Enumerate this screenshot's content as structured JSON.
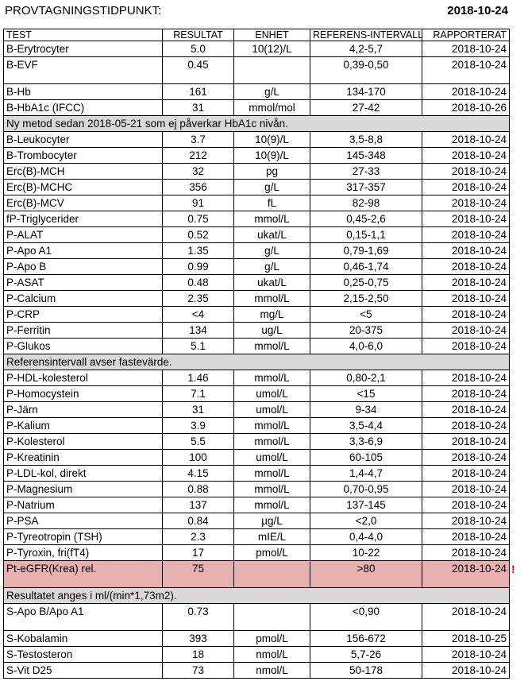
{
  "header": {
    "label": "PROVTAGNINGSTIDPUNKT:",
    "date": "2018-10-24"
  },
  "columns": {
    "test": "TEST",
    "result": "RESULTAT",
    "unit": "ENHET",
    "ref": "REFERENS-INTERVALL",
    "reported": "RAPPORTERAT"
  },
  "rows": [
    {
      "type": "data",
      "test": "B-Erytrocyter",
      "result": "5.0",
      "unit": "10(12)/L",
      "ref": "4,2-5,7",
      "date": "2018-10-24"
    },
    {
      "type": "data",
      "tall": true,
      "test": "B-EVF",
      "result": "0.45",
      "unit": "",
      "ref": "0,39-0,50",
      "date": "2018-10-24"
    },
    {
      "type": "data",
      "test": "B-Hb",
      "result": "161",
      "unit": "g/L",
      "ref": "134-170",
      "date": "2018-10-24"
    },
    {
      "type": "data",
      "test": "B-HbA1c (IFCC)",
      "result": "31",
      "unit": "mmol/mol",
      "ref": "27-42",
      "date": "2018-10-26"
    },
    {
      "type": "note",
      "text": "Ny metod sedan 2018-05-21 som ej påverkar HbA1c nivån."
    },
    {
      "type": "data",
      "test": "B-Leukocyter",
      "result": "3.7",
      "unit": "10(9)/L",
      "ref": "3,5-8,8",
      "date": "2018-10-24"
    },
    {
      "type": "data",
      "test": "B-Trombocyter",
      "result": "212",
      "unit": "10(9)/L",
      "ref": "145-348",
      "date": "2018-10-24"
    },
    {
      "type": "data",
      "test": "Erc(B)-MCH",
      "result": "32",
      "unit": "pg",
      "ref": "27-33",
      "date": "2018-10-24"
    },
    {
      "type": "data",
      "test": "Erc(B)-MCHC",
      "result": "356",
      "unit": "g/L",
      "ref": "317-357",
      "date": "2018-10-24"
    },
    {
      "type": "data",
      "test": "Erc(B)-MCV",
      "result": "91",
      "unit": "fL",
      "ref": "82-98",
      "date": "2018-10-24"
    },
    {
      "type": "data",
      "test": "fP-Triglycerider",
      "result": "0.75",
      "unit": "mmol/L",
      "ref": "0,45-2,6",
      "date": "2018-10-24"
    },
    {
      "type": "data",
      "test": "P-ALAT",
      "result": "0.52",
      "unit": "ukat/L",
      "ref": "0,15-1,1",
      "date": "2018-10-24"
    },
    {
      "type": "data",
      "test": "P-Apo A1",
      "result": "1.35",
      "unit": "g/L",
      "ref": "0,79-1,69",
      "date": "2018-10-24"
    },
    {
      "type": "data",
      "test": "P-Apo B",
      "result": "0.99",
      "unit": "g/L",
      "ref": "0,46-1,74",
      "date": "2018-10-24"
    },
    {
      "type": "data",
      "test": "P-ASAT",
      "result": "0.48",
      "unit": "ukat/L",
      "ref": "0,25-0,75",
      "date": "2018-10-24"
    },
    {
      "type": "data",
      "test": "P-Calcium",
      "result": "2.35",
      "unit": "mmol/L",
      "ref": "2,15-2,50",
      "date": "2018-10-24"
    },
    {
      "type": "data",
      "test": "P-CRP",
      "result": "<4",
      "unit": "mg/L",
      "ref": "<5",
      "date": "2018-10-24"
    },
    {
      "type": "data",
      "test": "P-Ferritin",
      "result": "134",
      "unit": "ug/L",
      "ref": "20-375",
      "date": "2018-10-24"
    },
    {
      "type": "data",
      "test": "P-Glukos",
      "result": "5.1",
      "unit": "mmol/L",
      "ref": "4,0-6,0",
      "date": "2018-10-24"
    },
    {
      "type": "note",
      "text": "Referensintervall avser fastevärde."
    },
    {
      "type": "data",
      "test": "P-HDL-kolesterol",
      "result": "1.46",
      "unit": "mmol/L",
      "ref": "0,80-2,1",
      "date": "2018-10-24"
    },
    {
      "type": "data",
      "test": "P-Homocystein",
      "result": "7.1",
      "unit": "umol/L",
      "ref": "<15",
      "date": "2018-10-24"
    },
    {
      "type": "data",
      "test": "P-Järn",
      "result": "31",
      "unit": "umol/L",
      "ref": "9-34",
      "date": "2018-10-24"
    },
    {
      "type": "data",
      "test": "P-Kalium",
      "result": "3.9",
      "unit": "mmol/L",
      "ref": "3,5-4,4",
      "date": "2018-10-24"
    },
    {
      "type": "data",
      "test": "P-Kolesterol",
      "result": "5.5",
      "unit": "mmol/L",
      "ref": "3,3-6,9",
      "date": "2018-10-24"
    },
    {
      "type": "data",
      "test": "P-Kreatinin",
      "result": "100",
      "unit": "umol/L",
      "ref": "60-105",
      "date": "2018-10-24"
    },
    {
      "type": "data",
      "test": "P-LDL-kol, direkt",
      "result": "4.15",
      "unit": "mmol/L",
      "ref": "1,4-4,7",
      "date": "2018-10-24"
    },
    {
      "type": "data",
      "test": "P-Magnesium",
      "result": "0.88",
      "unit": "mmol/L",
      "ref": "0,70-0,95",
      "date": "2018-10-24"
    },
    {
      "type": "data",
      "test": "P-Natrium",
      "result": "137",
      "unit": "mmol/L",
      "ref": "137-145",
      "date": "2018-10-24"
    },
    {
      "type": "data",
      "test": "P-PSA",
      "result": "0.84",
      "unit": "µg/L",
      "ref": "<2,0",
      "date": "2018-10-24"
    },
    {
      "type": "data",
      "test": "P-Tyreotropin (TSH)",
      "result": "2.3",
      "unit": "mIE/L",
      "ref": "0,4-4,0",
      "date": "2018-10-24"
    },
    {
      "type": "data",
      "test": "P-Tyroxin, fri(fT4)",
      "result": "17",
      "unit": "pmol/L",
      "ref": "10-22",
      "date": "2018-10-24"
    },
    {
      "type": "data",
      "tall": true,
      "flag": true,
      "test": "Pt-eGFR(Krea) rel.",
      "result": "75",
      "unit": "",
      "ref": ">80",
      "date": "2018-10-24",
      "mark": "!"
    },
    {
      "type": "note",
      "text": "Resultatet anges i  ml/(min*1,73m2)."
    },
    {
      "type": "data",
      "tall": true,
      "test": "S-Apo B/Apo A1",
      "result": "0.73",
      "unit": "",
      "ref": "<0,90",
      "date": "2018-10-24"
    },
    {
      "type": "data",
      "test": "S-Kobalamin",
      "result": "393",
      "unit": "pmol/L",
      "ref": "156-672",
      "date": "2018-10-25"
    },
    {
      "type": "data",
      "test": "S-Testosteron",
      "result": "18",
      "unit": "nmol/L",
      "ref": "5,7-26",
      "date": "2018-10-24"
    },
    {
      "type": "data",
      "test": "S-Vit D25",
      "result": "73",
      "unit": "nmol/L",
      "ref": "50-178",
      "date": "2018-10-24"
    }
  ]
}
